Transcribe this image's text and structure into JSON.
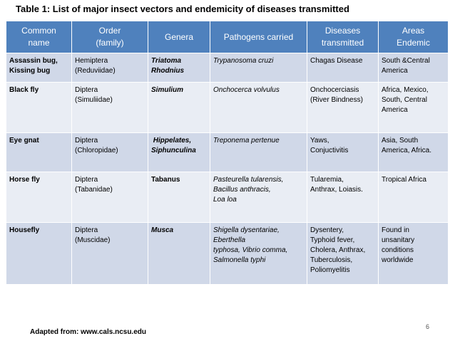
{
  "title": "Table 1: List of major insect vectors and endemicity of diseases transmitted",
  "headers": [
    [
      "Common",
      "name"
    ],
    [
      "Order",
      "(family)"
    ],
    [
      "Genera"
    ],
    [
      "Pathogens carried"
    ],
    [
      "Diseases",
      "transmitted"
    ],
    [
      "Areas",
      "Endemic"
    ]
  ],
  "rows": [
    {
      "common": [
        "Assassin bug,",
        "Kissing bug"
      ],
      "order": [
        "Hemiptera",
        "(Reduviidae)"
      ],
      "genera": [
        "Triatoma",
        "Rhodnius"
      ],
      "pathogens": [
        "Trypanosoma cruzi"
      ],
      "diseases": [
        "Chagas Disease"
      ],
      "areas": [
        "South &Central",
        "America"
      ]
    },
    {
      "common": [
        "Black fly"
      ],
      "order": [
        "Diptera",
        "(Simuliidae)"
      ],
      "genera": [
        "Simulium"
      ],
      "pathogens": [
        "Onchocerca volvulus"
      ],
      "diseases": [
        "Onchocerciasis",
        "(River Bindness)"
      ],
      "areas": [
        "Africa, Mexico,",
        "South, Central",
        "America"
      ]
    },
    {
      "common": [
        "Eye gnat"
      ],
      "order": [
        "Diptera",
        "(Chloropidae)"
      ],
      "genera": [
        " Hippelates,",
        "Siphunculina"
      ],
      "pathogens": [
        "Treponema pertenue"
      ],
      "diseases": [
        "Yaws,",
        "Conjuctivitis"
      ],
      "areas": [
        "Asia, South",
        "America, Africa."
      ]
    },
    {
      "common": [
        "Horse fly"
      ],
      "order": [
        "Diptera",
        "(Tabanidae)"
      ],
      "genera": [
        "Tabanus"
      ],
      "pathogens": [
        "Pasteurella tularensis,",
        "Bacillus anthracis,",
        "Loa loa"
      ],
      "diseases": [
        "Tularemia,",
        "Anthrax, Loiasis."
      ],
      "areas": [
        "Tropical Africa"
      ]
    },
    {
      "common": [
        "Housefly"
      ],
      "order": [
        "Diptera",
        "(Muscidae)"
      ],
      "genera": [
        "Musca"
      ],
      "pathogens": [
        "Shigella dysentariae,",
        "Eberthella",
        "typhosa, Vibrio comma,",
        "Salmonella typhi"
      ],
      "diseases": [
        "Dysentery,",
        "Typhoid fever,",
        "Cholera, Anthrax,",
        "Tuberculosis,",
        "Poliomyelitis"
      ],
      "areas": [
        "Found in",
        "unsanitary",
        "conditions",
        "worldwide"
      ]
    }
  ],
  "page_number": "6",
  "source": "Adapted from: www.cals.ncsu.edu"
}
